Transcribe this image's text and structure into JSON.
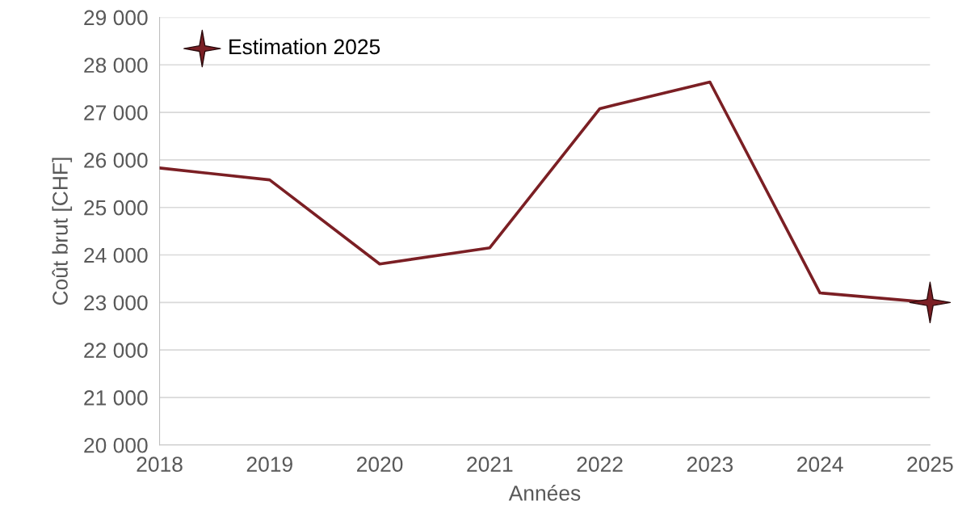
{
  "chart_data": {
    "type": "line",
    "xlabel": "Années",
    "ylabel": "Coût brut [CHF]",
    "x": [
      2018,
      2019,
      2020,
      2021,
      2022,
      2023,
      2024,
      2025
    ],
    "series": [
      {
        "color": "#7b1f24",
        "values": [
          25830,
          25580,
          23810,
          24150,
          27080,
          27640,
          23200,
          23000
        ]
      },
      {
        "type": "scatter",
        "name": "Estimation 2025",
        "color": "#7b1f24",
        "x": [
          2025
        ],
        "values": [
          23000
        ],
        "marker": "star"
      }
    ],
    "xlim": [
      2018,
      2025
    ],
    "xticks": [
      2018,
      2019,
      2020,
      2021,
      2022,
      2023,
      2024,
      2025
    ],
    "ylim": [
      20000,
      29000
    ],
    "yticks": [
      {
        "value": 20000,
        "label": "20 000"
      },
      {
        "value": 21000,
        "label": "21 000"
      },
      {
        "value": 22000,
        "label": "22 000"
      },
      {
        "value": 23000,
        "label": "23 000"
      },
      {
        "value": 24000,
        "label": "24 000"
      },
      {
        "value": 25000,
        "label": "25 000"
      },
      {
        "value": 26000,
        "label": "26 000"
      },
      {
        "value": 27000,
        "label": "27 000"
      },
      {
        "value": 28000,
        "label": "28 000"
      },
      {
        "value": 29000,
        "label": "29 000"
      }
    ],
    "grid": "y",
    "legend": "top left"
  }
}
